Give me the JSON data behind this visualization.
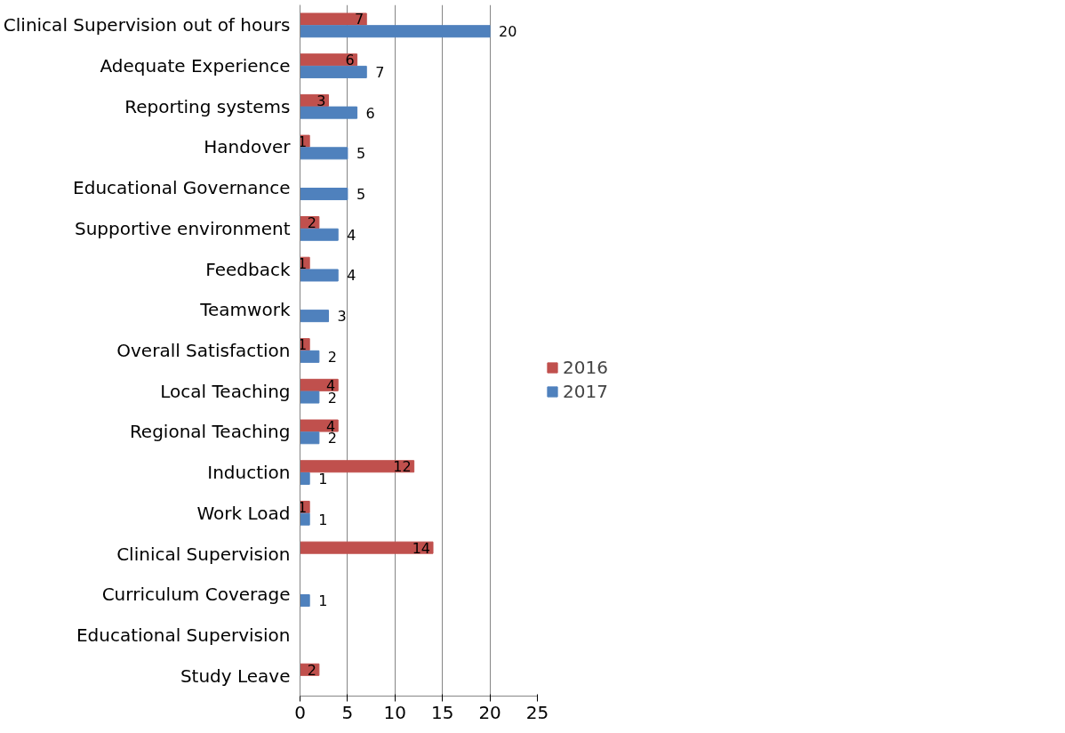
{
  "chart_data": {
    "type": "bar",
    "orientation": "horizontal",
    "categories": [
      "Clinical Supervision out of hours",
      "Adequate Experience",
      "Reporting systems",
      "Handover",
      "Educational Governance",
      "Supportive environment",
      "Feedback",
      "Teamwork",
      "Overall Satisfaction",
      "Local Teaching",
      "Regional Teaching",
      "Induction",
      "Work Load",
      "Clinical Supervision",
      "Curriculum Coverage",
      "Educational Supervision",
      "Study Leave"
    ],
    "series": [
      {
        "name": "2016",
        "color": "#c0504d",
        "values": [
          7,
          6,
          3,
          1,
          null,
          2,
          1,
          null,
          1,
          4,
          4,
          12,
          1,
          14,
          null,
          null,
          2
        ]
      },
      {
        "name": "2017",
        "color": "#4f81bd",
        "values": [
          20,
          7,
          6,
          5,
          5,
          4,
          4,
          3,
          2,
          2,
          2,
          1,
          1,
          null,
          1,
          null,
          null
        ]
      }
    ],
    "xlim": [
      0,
      25
    ],
    "xticks": [
      0,
      5,
      10,
      15,
      20,
      25
    ],
    "grid": "x",
    "legend": "right",
    "data_labels": true
  }
}
